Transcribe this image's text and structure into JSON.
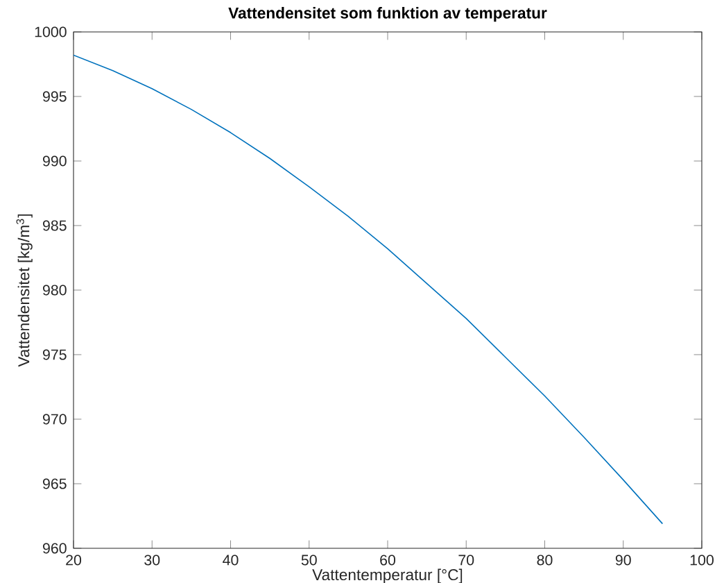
{
  "chart_data": {
    "type": "line",
    "title": "Vattendensitet som funktion av temperatur",
    "xlabel": "Vattentemperatur [°C]",
    "ylabel": "Vattendensitet [kg/m$^{3}$]",
    "x": [
      20,
      25,
      30,
      35,
      40,
      45,
      50,
      55,
      60,
      65,
      70,
      75,
      80,
      85,
      90,
      95
    ],
    "series": [
      {
        "color": "#0072bd",
        "values": [
          998.2,
          997.0,
          995.6,
          994.0,
          992.2,
          990.2,
          988.0,
          985.7,
          983.2,
          980.5,
          977.8,
          974.8,
          971.8,
          968.6,
          965.3,
          961.9
        ]
      }
    ],
    "xlim": [
      20,
      100
    ],
    "ylim": [
      960,
      1000
    ],
    "xticks": [
      20,
      30,
      40,
      50,
      60,
      70,
      80,
      90,
      100
    ],
    "yticks": [
      960,
      965,
      970,
      975,
      980,
      985,
      990,
      995,
      1000
    ],
    "grid": false,
    "marker": "none",
    "line_style": "solid"
  }
}
